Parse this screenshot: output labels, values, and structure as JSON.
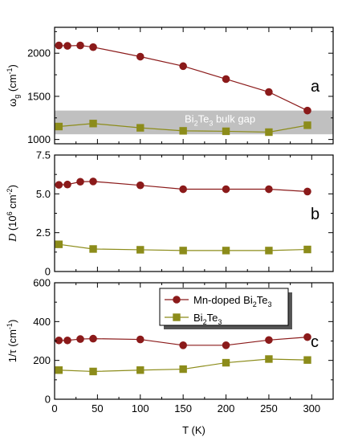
{
  "chart_data": [
    {
      "type": "line",
      "panel_label": "a",
      "xlim": [
        0,
        325
      ],
      "ylim": [
        950,
        2300
      ],
      "xticks": [
        0,
        50,
        100,
        150,
        200,
        250,
        300
      ],
      "yticks": [
        1000,
        1500,
        2000
      ],
      "ytick_labels": [
        "1000",
        "1500",
        "2000"
      ],
      "ylabel": "ω",
      "ylabel_sub": "g",
      "ylabel_unit": " (cm",
      "ylabel_sup": "-1",
      "ylabel_close": ")",
      "band": {
        "from": 1060,
        "to": 1335,
        "label": "Bi",
        "label_sub1": "2",
        "label_mid": "Te",
        "label_sub2": "3",
        "label_tail": " bulk gap",
        "color": "#c0c0c0"
      },
      "series": [
        {
          "key": "mn",
          "color": "#8b1a1a",
          "marker": "circle",
          "x": [
            5,
            15,
            30,
            45,
            100,
            150,
            200,
            250,
            295
          ],
          "y": [
            2090,
            2085,
            2090,
            2070,
            1960,
            1850,
            1700,
            1550,
            1335
          ]
        },
        {
          "key": "bt",
          "color": "#8c8c1a",
          "marker": "square",
          "x": [
            5,
            45,
            100,
            150,
            200,
            250,
            295
          ],
          "y": [
            1150,
            1185,
            1135,
            1100,
            1095,
            1085,
            1165
          ]
        }
      ]
    },
    {
      "type": "line",
      "panel_label": "b",
      "xlim": [
        0,
        325
      ],
      "ylim": [
        0,
        7.5
      ],
      "xticks": [
        0,
        50,
        100,
        150,
        200,
        250,
        300
      ],
      "yticks": [
        0,
        2.5,
        5.0,
        7.5
      ],
      "ytick_labels": [
        "0",
        "2.5",
        "5.0",
        "7.5"
      ],
      "ylabel": "D",
      "ylabel_unit": " (10",
      "ylabel_sup": "6",
      "ylabel_mid": " cm",
      "ylabel_sup2": "-2",
      "ylabel_close": ")",
      "series": [
        {
          "key": "mn",
          "color": "#8b1a1a",
          "marker": "circle",
          "x": [
            5,
            15,
            30,
            45,
            100,
            150,
            200,
            250,
            295
          ],
          "y": [
            5.58,
            5.6,
            5.78,
            5.8,
            5.55,
            5.3,
            5.3,
            5.3,
            5.15
          ]
        },
        {
          "key": "bt",
          "color": "#8c8c1a",
          "marker": "square",
          "x": [
            5,
            45,
            100,
            150,
            200,
            250,
            295
          ],
          "y": [
            1.75,
            1.45,
            1.4,
            1.35,
            1.35,
            1.35,
            1.42
          ]
        }
      ]
    },
    {
      "type": "line",
      "panel_label": "c",
      "xlim": [
        0,
        325
      ],
      "ylim": [
        0,
        600
      ],
      "xticks": [
        0,
        50,
        100,
        150,
        200,
        250,
        300
      ],
      "xtick_labels": [
        "0",
        "50",
        "100",
        "150",
        "200",
        "250",
        "300"
      ],
      "yticks": [
        0,
        200,
        400,
        600
      ],
      "ytick_labels": [
        "0",
        "200",
        "400",
        "600"
      ],
      "xlabel": "T (K)",
      "ylabel": "1/τ (cm",
      "ylabel_sup": "-1",
      "ylabel_close": ")",
      "series": [
        {
          "key": "mn",
          "color": "#8b1a1a",
          "marker": "circle",
          "x": [
            5,
            15,
            30,
            45,
            100,
            150,
            200,
            250,
            295
          ],
          "y": [
            303,
            303,
            310,
            312,
            308,
            278,
            278,
            305,
            320
          ]
        },
        {
          "key": "bt",
          "color": "#8c8c1a",
          "marker": "square",
          "x": [
            5,
            45,
            100,
            150,
            200,
            250,
            295
          ],
          "y": [
            150,
            143,
            150,
            155,
            188,
            207,
            202
          ]
        }
      ]
    }
  ],
  "legend": {
    "placement": "top-right",
    "entries": [
      {
        "key": "mn",
        "color": "#8b1a1a",
        "marker": "circle",
        "text": "Mn-doped Bi",
        "sub1": "2",
        "mid": "Te",
        "sub2": "3"
      },
      {
        "key": "bt",
        "color": "#8c8c1a",
        "marker": "square",
        "text": "Bi",
        "sub1": "2",
        "mid": "Te",
        "sub2": "3"
      }
    ]
  }
}
